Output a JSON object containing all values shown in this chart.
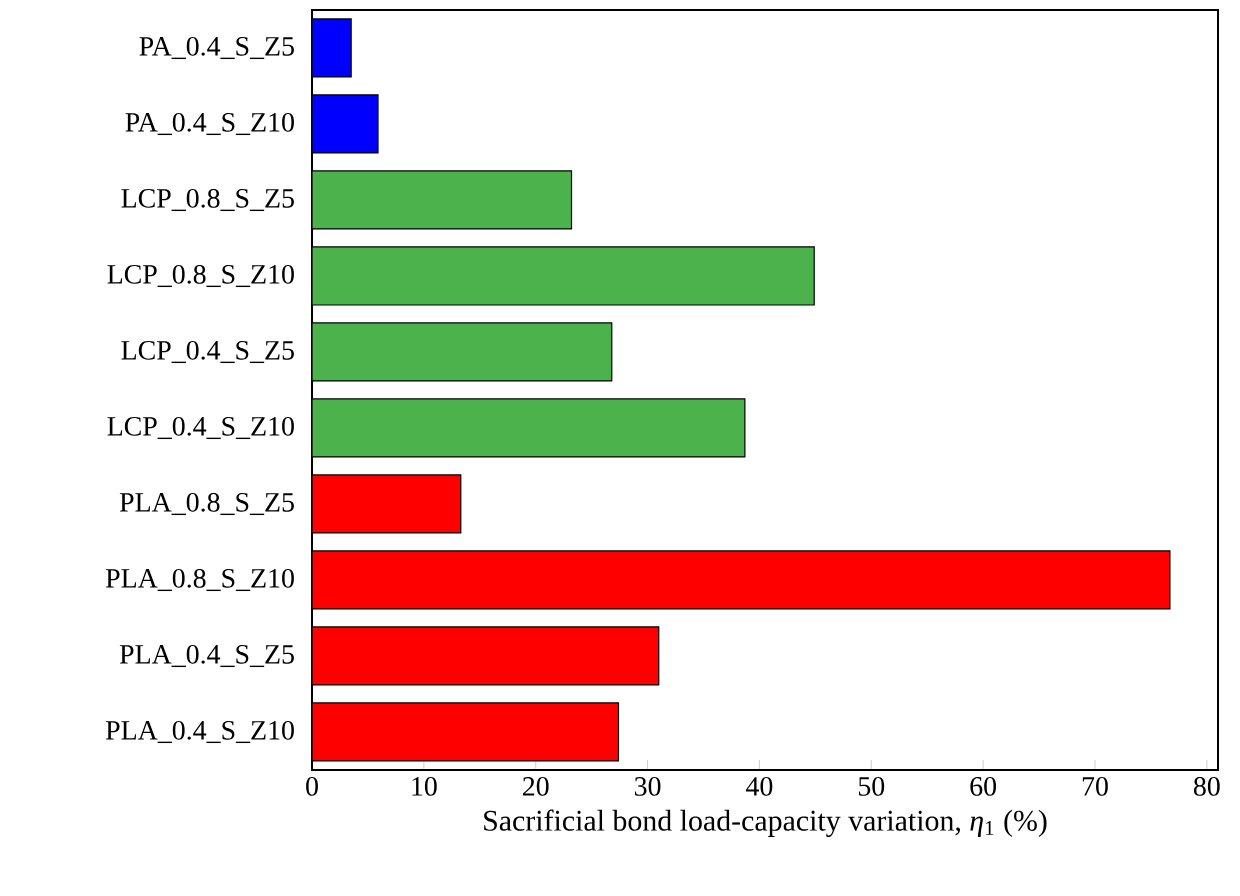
{
  "chart_data": {
    "type": "bar",
    "orientation": "horizontal",
    "xlabel": "Sacrificial bond load-capacity variation, *η*$_{1}$ (%)",
    "categories": [
      "PA_0.4_S_Z5",
      "PA_0.4_S_Z10",
      "LCP_0.8_S_Z5",
      "LCP_0.8_S_Z10",
      "LCP_0.4_S_Z5",
      "LCP_0.4_S_Z10",
      "PLA_0.8_S_Z5",
      "PLA_0.8_S_Z10",
      "PLA_0.4_S_Z5",
      "PLA_0.4_S_Z10"
    ],
    "values": [
      3.5,
      5.9,
      23.2,
      44.9,
      26.8,
      38.7,
      13.3,
      76.7,
      31.0,
      27.4
    ],
    "colors": [
      "#0000ff",
      "#0000ff",
      "#4cb34c",
      "#4cb34c",
      "#4cb34c",
      "#4cb34c",
      "#ff0000",
      "#ff0000",
      "#ff0000",
      "#ff0000"
    ],
    "xlim": [
      0,
      81
    ],
    "xticks": [
      0,
      10,
      20,
      30,
      40,
      50,
      60,
      70,
      80
    ],
    "grid": false
  }
}
